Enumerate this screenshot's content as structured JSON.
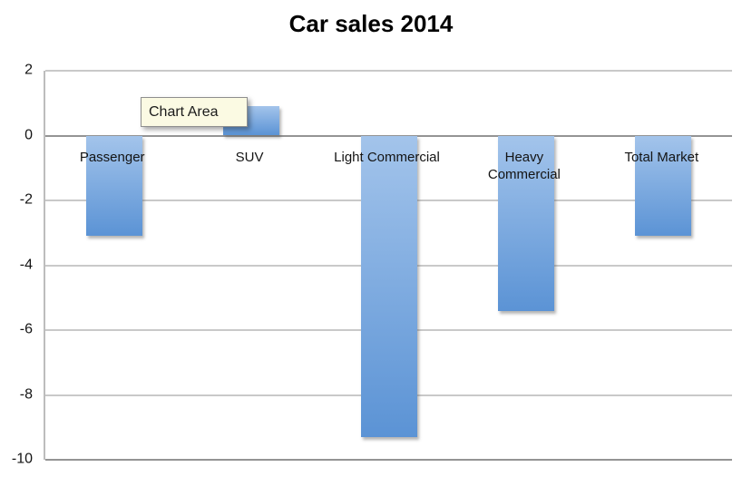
{
  "title": "Car sales 2014",
  "tooltip": {
    "label": "Chart Area",
    "bg": "#fbfae3"
  },
  "chart_data": {
    "type": "bar",
    "title": "Car sales 2014",
    "categories": [
      "Passenger",
      "SUV",
      "Light Commercial",
      "Heavy\nCommercial",
      "Total Market"
    ],
    "values": [
      -3.1,
      0.9,
      -9.3,
      -5.4,
      -3.1
    ],
    "xlabel": "",
    "ylabel": "",
    "ylim": [
      -10,
      2
    ],
    "yticks": [
      2,
      0,
      -2,
      -4,
      -6,
      -8,
      -10
    ],
    "grid": true,
    "legend": false,
    "bar_gradient": [
      "#a3c4eb",
      "#5b93d5"
    ],
    "gridline_color": "#c9c9c9",
    "axis_line_color": "#949494"
  }
}
